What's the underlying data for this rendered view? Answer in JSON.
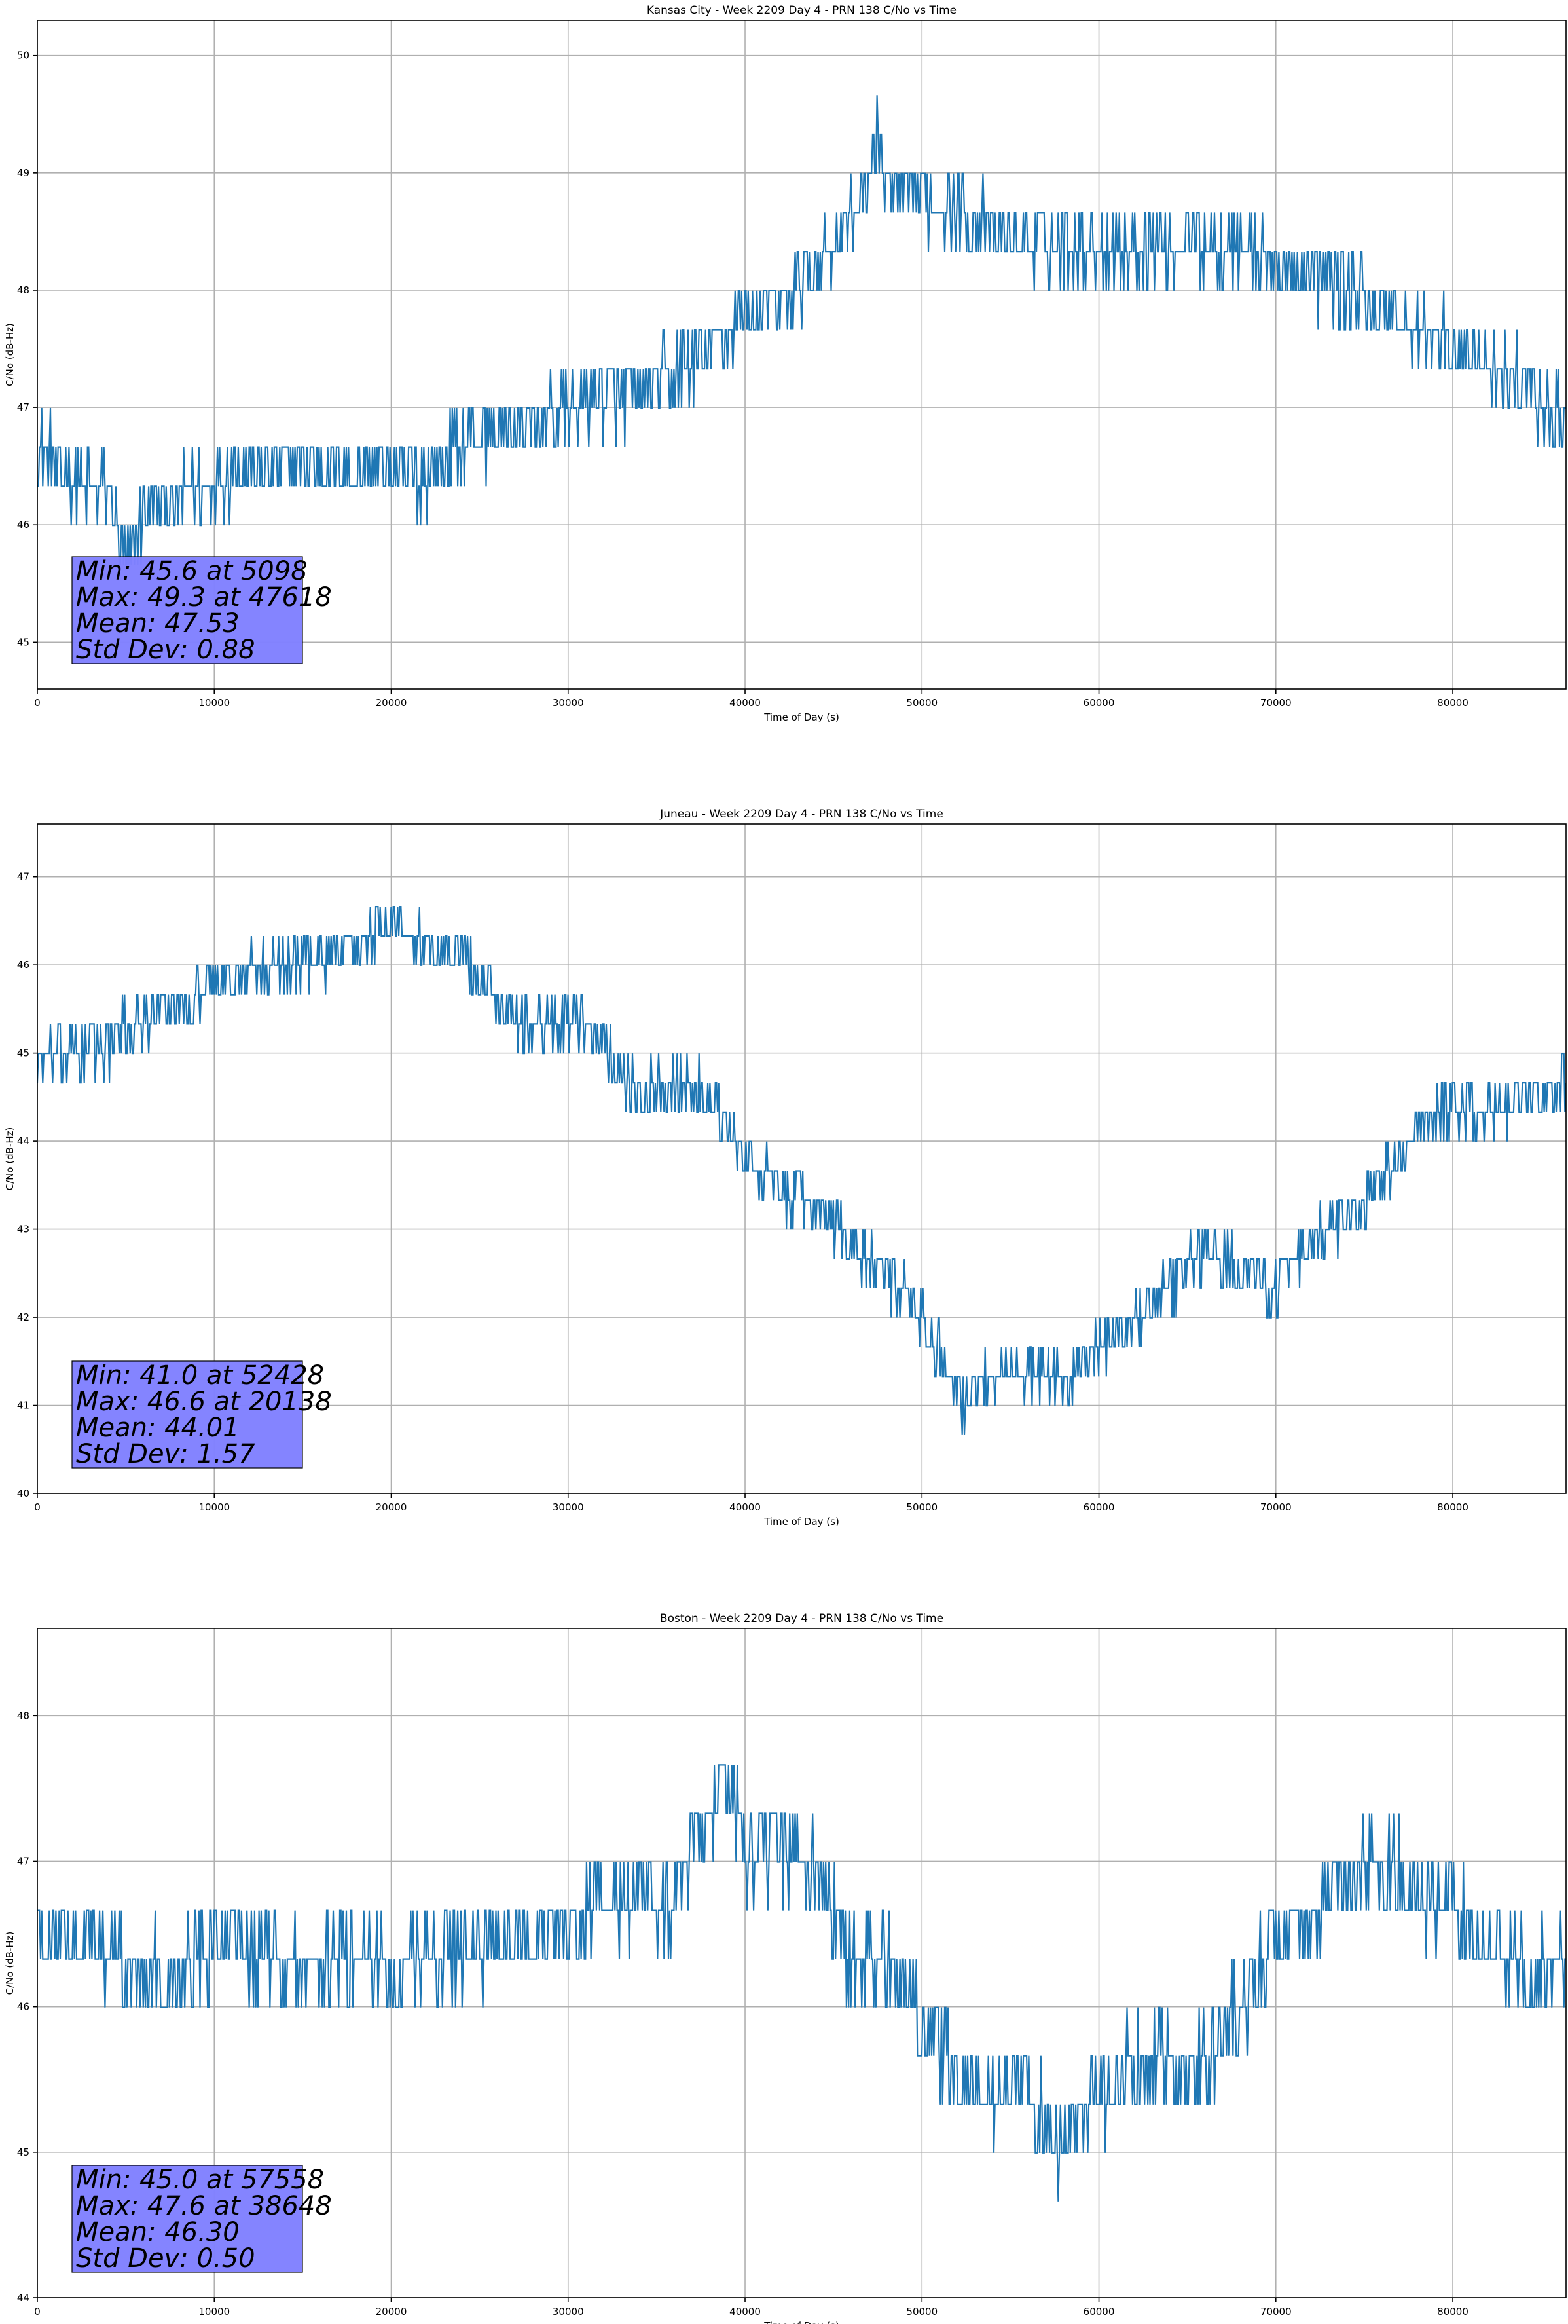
{
  "chart_data": [
    {
      "type": "line",
      "title": "Kansas City - Week 2209 Day 4 - PRN 138 C/No vs Time",
      "xlabel": "Time of Day (s)",
      "ylabel": "C/No (dB-Hz)",
      "xlim": [
        0,
        86400
      ],
      "ylim": [
        44.6,
        50.3
      ],
      "xticks": [
        0,
        10000,
        20000,
        30000,
        40000,
        50000,
        60000,
        70000,
        80000
      ],
      "yticks": [
        45,
        46,
        47,
        48,
        49,
        50
      ],
      "grid": true,
      "line_color": "#1f77b4",
      "stats_box": {
        "lines": [
          "Min: 45.6 at 5098",
          "Max: 49.3 at 47618",
          "Mean: 47.53",
          "Std Dev: 0.88"
        ],
        "color": "#8080ff"
      },
      "x": [
        0,
        2000,
        4000,
        5098,
        6000,
        8000,
        10000,
        12000,
        14000,
        16000,
        18000,
        20000,
        22000,
        24000,
        26000,
        28000,
        30000,
        32000,
        34000,
        36000,
        38000,
        40000,
        42000,
        44000,
        46000,
        47618,
        48000,
        50000,
        52000,
        54000,
        56000,
        58000,
        60000,
        62000,
        64000,
        66000,
        68000,
        70000,
        72000,
        74000,
        76000,
        78000,
        80000,
        82000,
        84000,
        86400
      ],
      "y": [
        46.7,
        46.4,
        46.3,
        45.6,
        46.1,
        46.2,
        46.4,
        46.5,
        46.5,
        46.5,
        46.5,
        46.5,
        46.4,
        46.7,
        46.8,
        46.8,
        47.0,
        47.1,
        47.1,
        47.3,
        47.5,
        47.8,
        47.9,
        48.2,
        48.6,
        49.3,
        48.8,
        48.8,
        48.7,
        48.5,
        48.4,
        48.4,
        48.4,
        48.4,
        48.4,
        48.4,
        48.4,
        48.2,
        48.1,
        48.0,
        47.8,
        47.7,
        47.5,
        47.4,
        47.2,
        46.8
      ],
      "spread": 0.3
    },
    {
      "type": "line",
      "title": "Juneau - Week 2209 Day 4 - PRN 138 C/No vs Time",
      "xlabel": "Time of Day (s)",
      "ylabel": "C/No (dB-Hz)",
      "xlim": [
        0,
        86400
      ],
      "ylim": [
        40.0,
        47.6
      ],
      "xticks": [
        0,
        10000,
        20000,
        30000,
        40000,
        50000,
        60000,
        70000,
        80000
      ],
      "yticks": [
        40,
        41,
        42,
        43,
        44,
        45,
        46,
        47
      ],
      "grid": true,
      "line_color": "#1f77b4",
      "stats_box": {
        "lines": [
          "Min: 41.0 at 52428",
          "Max: 46.6 at 20138",
          "Mean: 44.01",
          "Std Dev: 1.57"
        ],
        "color": "#8080ff"
      },
      "x": [
        0,
        2000,
        4000,
        6000,
        8000,
        10000,
        12000,
        14000,
        16000,
        18000,
        20138,
        22000,
        24000,
        26000,
        28000,
        30000,
        32000,
        34000,
        36000,
        38000,
        40000,
        42000,
        44000,
        46000,
        48000,
        50000,
        52428,
        54000,
        56000,
        58000,
        60000,
        62000,
        64000,
        66000,
        68000,
        70000,
        72000,
        74000,
        76000,
        78000,
        80000,
        82000,
        84000,
        86400
      ],
      "y": [
        44.9,
        45.0,
        45.1,
        45.4,
        45.5,
        45.8,
        45.9,
        46.0,
        46.1,
        46.2,
        46.6,
        46.2,
        46.1,
        45.6,
        45.3,
        45.4,
        45.1,
        44.5,
        44.7,
        44.5,
        43.8,
        43.4,
        43.3,
        42.8,
        42.5,
        42.0,
        41.0,
        41.4,
        41.4,
        41.3,
        41.6,
        42.0,
        42.3,
        42.8,
        42.5,
        42.3,
        42.8,
        43.1,
        43.5,
        44.1,
        44.4,
        44.3,
        44.5,
        44.6
      ],
      "spread": 0.3
    },
    {
      "type": "line",
      "title": "Boston - Week 2209 Day 4 - PRN 138 C/No vs Time",
      "xlabel": "Time of Day (s)",
      "ylabel": "C/No (dB-Hz)",
      "xlim": [
        0,
        86400
      ],
      "ylim": [
        44.0,
        48.6
      ],
      "xticks": [
        0,
        10000,
        20000,
        30000,
        40000,
        50000,
        60000,
        70000,
        80000
      ],
      "yticks": [
        44,
        45,
        46,
        47,
        48
      ],
      "grid": true,
      "line_color": "#1f77b4",
      "stats_box": {
        "lines": [
          "Min: 45.0 at 57558",
          "Max: 47.6 at 38648",
          "Mean: 46.30",
          "Std Dev: 0.50"
        ],
        "color": "#8080ff"
      },
      "x": [
        0,
        2000,
        4000,
        6000,
        8000,
        10000,
        12000,
        14000,
        16000,
        18000,
        20000,
        22000,
        24000,
        26000,
        28000,
        30000,
        32000,
        34000,
        36000,
        38648,
        40000,
        42000,
        44000,
        46000,
        48000,
        50000,
        52000,
        54000,
        56000,
        57558,
        60000,
        62000,
        64000,
        66000,
        68000,
        70000,
        72000,
        74000,
        76000,
        78000,
        80000,
        82000,
        84000,
        86400
      ],
      "y": [
        46.5,
        46.5,
        46.4,
        46.2,
        46.2,
        46.5,
        46.4,
        46.3,
        46.2,
        46.4,
        46.2,
        46.4,
        46.4,
        46.4,
        46.5,
        46.5,
        46.8,
        46.7,
        46.7,
        47.6,
        47.1,
        47.1,
        46.9,
        46.3,
        46.3,
        45.9,
        45.5,
        45.4,
        45.4,
        45.0,
        45.4,
        45.6,
        45.6,
        45.6,
        46.0,
        46.4,
        46.6,
        46.9,
        47.0,
        46.8,
        46.7,
        46.4,
        46.2,
        46.3
      ],
      "spread": 0.3
    }
  ]
}
